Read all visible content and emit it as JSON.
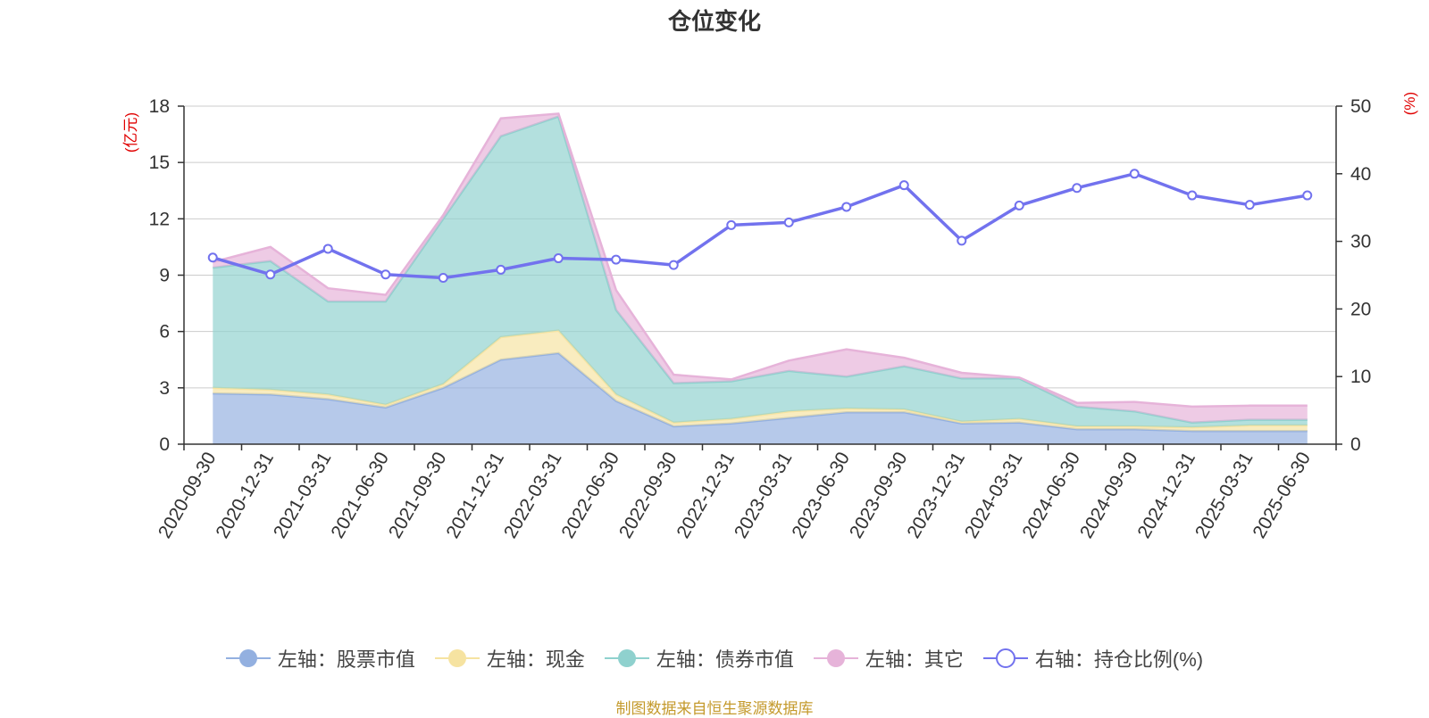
{
  "chart_data": {
    "type": "area",
    "title": "仓位变化",
    "x": [
      "2020-09-30",
      "2020-12-31",
      "2021-03-31",
      "2021-06-30",
      "2021-09-30",
      "2021-12-31",
      "2022-03-31",
      "2022-06-30",
      "2022-09-30",
      "2022-12-31",
      "2023-03-31",
      "2023-06-30",
      "2023-09-30",
      "2023-12-31",
      "2024-03-31",
      "2024-06-30",
      "2024-09-30",
      "2024-12-31",
      "2025-03-31",
      "2025-06-30"
    ],
    "left_axis": {
      "unit": "(亿元)",
      "range": [
        0,
        18
      ],
      "ticks": [
        "0",
        "3",
        "6",
        "9",
        "12",
        "15",
        "18"
      ]
    },
    "right_axis": {
      "unit": "(%)",
      "range": [
        0,
        50
      ],
      "ticks": [
        "0",
        "10",
        "20",
        "30",
        "40",
        "50"
      ]
    },
    "grid": true,
    "legend_position": "bottom",
    "series": [
      {
        "name": "左轴：股票市值",
        "axis": "left",
        "stack": true,
        "color": "#93b0e0",
        "values": [
          2.7,
          2.65,
          2.4,
          1.95,
          3.0,
          4.5,
          4.85,
          2.3,
          0.95,
          1.1,
          1.4,
          1.7,
          1.7,
          1.1,
          1.15,
          0.8,
          0.8,
          0.7,
          0.7,
          0.7
        ]
      },
      {
        "name": "左轴：现金",
        "axis": "left",
        "stack": true,
        "color": "#f6e3a1",
        "values": [
          0.3,
          0.25,
          0.25,
          0.15,
          0.2,
          1.2,
          1.2,
          0.35,
          0.2,
          0.25,
          0.35,
          0.2,
          0.15,
          0.1,
          0.2,
          0.15,
          0.15,
          0.2,
          0.3,
          0.3
        ]
      },
      {
        "name": "左轴：债券市值",
        "axis": "left",
        "stack": true,
        "color": "#8fd1ce",
        "values": [
          6.4,
          6.85,
          4.95,
          5.5,
          8.8,
          10.7,
          11.4,
          4.5,
          2.1,
          2.0,
          2.15,
          1.7,
          2.3,
          2.3,
          2.15,
          1.05,
          0.8,
          0.25,
          0.3,
          0.3
        ]
      },
      {
        "name": "左轴：其它",
        "axis": "left",
        "stack": true,
        "color": "#e6b3d9",
        "values": [
          0.3,
          0.75,
          0.7,
          0.35,
          0.2,
          0.95,
          0.15,
          1.05,
          0.45,
          0.1,
          0.55,
          1.45,
          0.45,
          0.3,
          0.05,
          0.2,
          0.5,
          0.85,
          0.75,
          0.75
        ]
      },
      {
        "name": "右轴：持仓比例(%)",
        "axis": "right",
        "type": "line",
        "color": "#7272ee",
        "values": [
          27.6,
          25.1,
          28.9,
          25.1,
          24.6,
          25.8,
          27.5,
          27.3,
          26.5,
          32.4,
          32.8,
          35.1,
          38.3,
          30.1,
          35.3,
          37.9,
          40.0,
          36.8,
          35.4,
          36.8
        ]
      }
    ]
  },
  "legend": [
    {
      "label": "左轴：股票市值",
      "icon": "circle-filled",
      "color": "#93b0e0"
    },
    {
      "label": "左轴：现金",
      "icon": "circle-filled",
      "color": "#f6e3a1"
    },
    {
      "label": "左轴：债券市值",
      "icon": "circle-filled",
      "color": "#8fd1ce"
    },
    {
      "label": "左轴：其它",
      "icon": "circle-filled",
      "color": "#e6b3d9"
    },
    {
      "label": "右轴：持仓比例(%)",
      "icon": "circle-hollow",
      "color": "#7272ee"
    }
  ],
  "source_note": "制图数据来自恒生聚源数据库"
}
